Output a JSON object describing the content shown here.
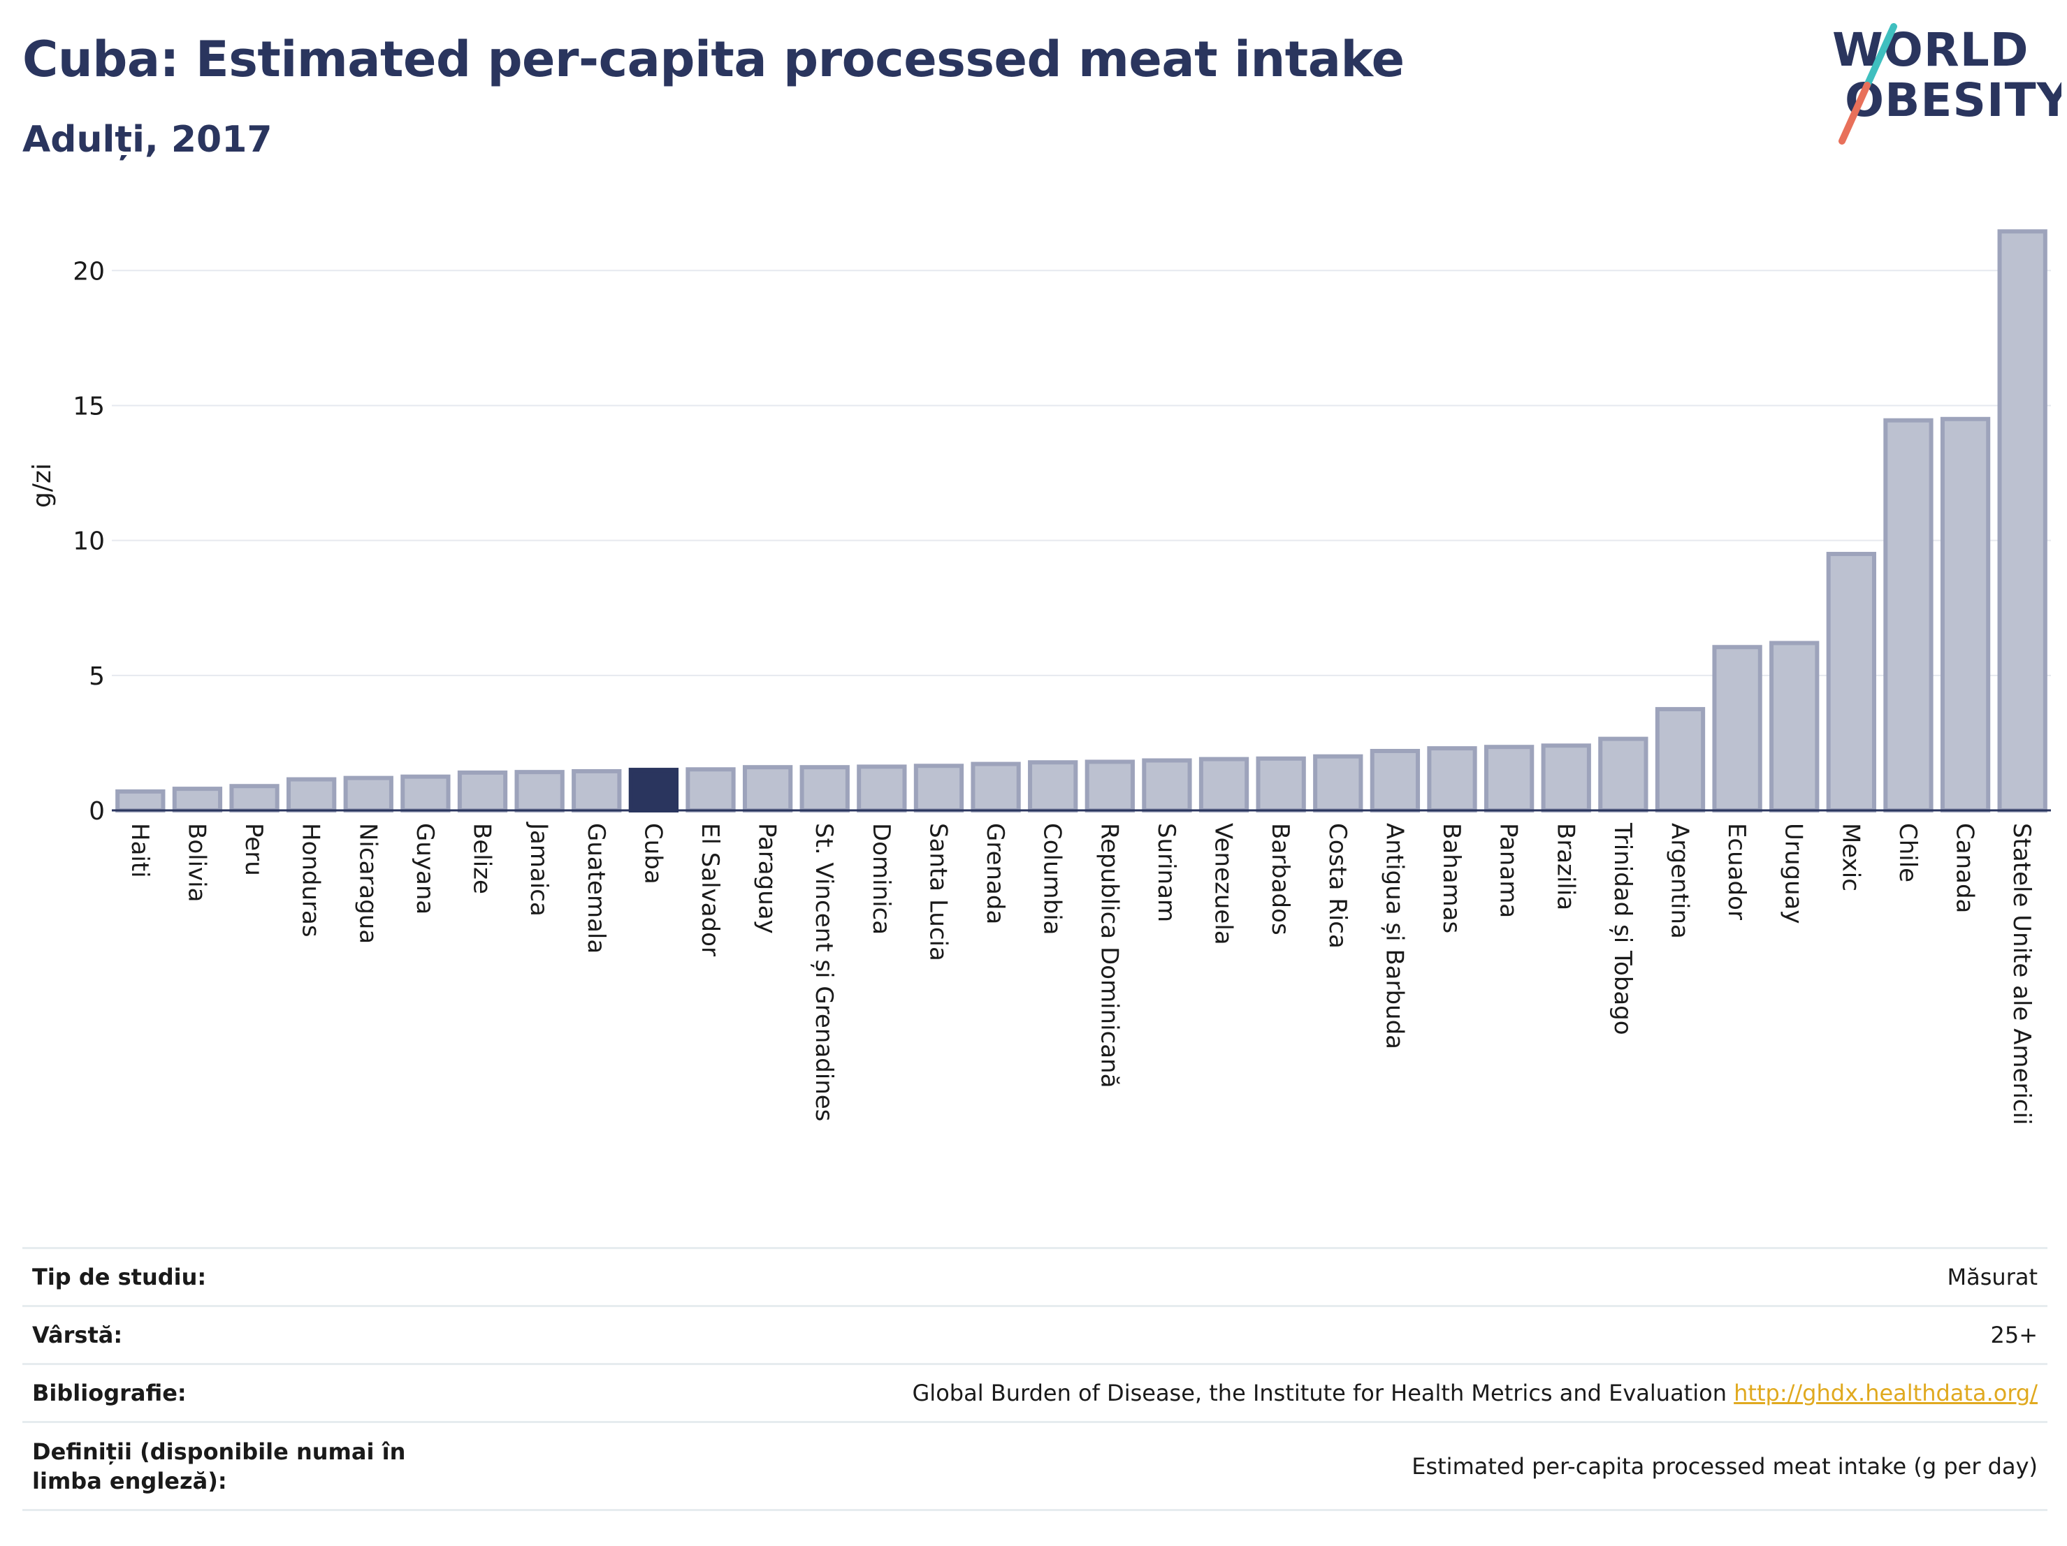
{
  "header": {
    "title": "Cuba: Estimated per-capita processed meat intake",
    "subtitle": "Adulți, 2017"
  },
  "logo": {
    "line1": "WORLD",
    "line2": "OBESITY"
  },
  "colors": {
    "bar": "#bcc1d0",
    "bar_edge": "#9da3bb",
    "highlight": "#2a355e",
    "grid": "#e6e9ef",
    "axis": "#2a355e"
  },
  "chart_data": {
    "type": "bar",
    "ylabel": "g/zi",
    "ylim": [
      0,
      22
    ],
    "yticks": [
      0,
      5,
      10,
      15,
      20
    ],
    "grid": true,
    "highlight": "Cuba",
    "categories": [
      "Haiti",
      "Bolivia",
      "Peru",
      "Honduras",
      "Nicaragua",
      "Guyana",
      "Belize",
      "Jamaica",
      "Guatemala",
      "Cuba",
      "El Salvador",
      "Paraguay",
      "St. Vincent și Grenadines",
      "Dominica",
      "Santa Lucia",
      "Grenada",
      "Columbia",
      "Republica Dominicană",
      "Surinam",
      "Venezuela",
      "Barbados",
      "Costa Rica",
      "Antigua și Barbuda",
      "Bahamas",
      "Panama",
      "Brazilia",
      "Trinidad și Tobago",
      "Argentina",
      "Ecuador",
      "Uruguay",
      "Mexic",
      "Chile",
      "Canada",
      "Statele Unite ale Americii"
    ],
    "values": [
      0.7,
      0.8,
      0.9,
      1.15,
      1.2,
      1.25,
      1.4,
      1.42,
      1.45,
      1.5,
      1.52,
      1.6,
      1.6,
      1.62,
      1.65,
      1.72,
      1.78,
      1.8,
      1.85,
      1.9,
      1.92,
      2.0,
      2.2,
      2.3,
      2.35,
      2.4,
      2.65,
      3.75,
      6.05,
      6.2,
      9.5,
      14.45,
      14.5,
      21.45
    ]
  },
  "info_table": [
    {
      "key": "Tip de studiu:",
      "value": "Măsurat"
    },
    {
      "key": "Vârstă:",
      "value": "25+"
    },
    {
      "key": "Bibliografie:",
      "value": "Global Burden of Disease, the Institute for Health Metrics and Evaluation",
      "link": "http://ghdx.healthdata.org/"
    },
    {
      "key": "Definiții (disponibile numai în limba engleză):",
      "value": "Estimated per-capita processed meat intake (g per day)"
    }
  ]
}
